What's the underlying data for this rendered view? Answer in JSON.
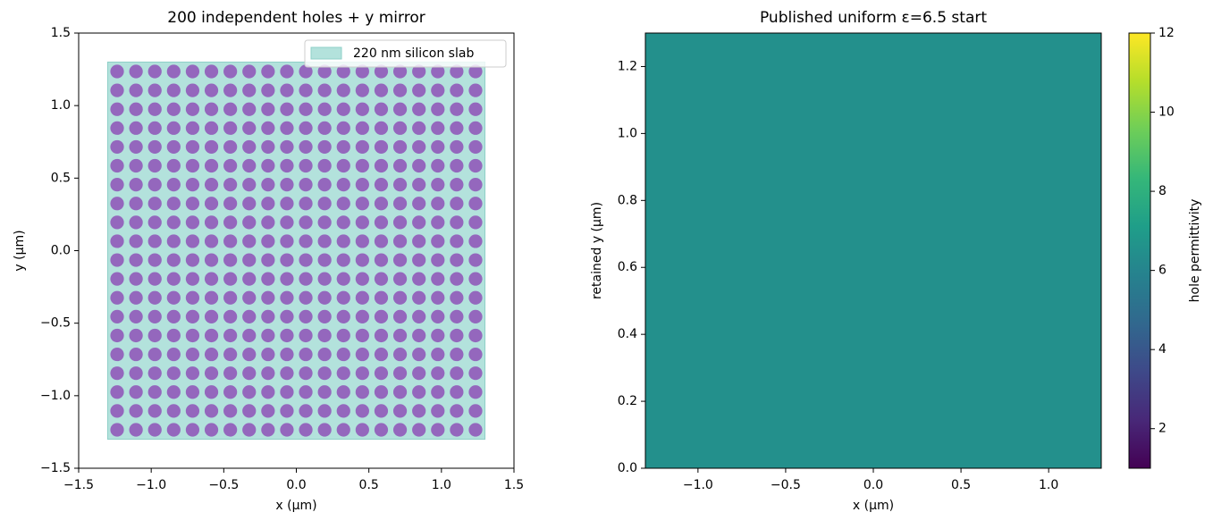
{
  "chart_data": [
    {
      "type": "scatter",
      "title": "200 independent holes + y mirror",
      "x_label": "x (µm)",
      "y_label": "y (µm)",
      "x": [
        -1.235,
        -1.105,
        -0.975,
        -0.845,
        -0.715,
        -0.585,
        -0.455,
        -0.325,
        -0.195,
        -0.065,
        0.065,
        0.195,
        0.325,
        0.455,
        0.585,
        0.715,
        0.845,
        0.975,
        1.105,
        1.235
      ],
      "y": [
        -1.235,
        -1.105,
        -0.975,
        -0.845,
        -0.715,
        -0.585,
        -0.455,
        -0.325,
        -0.195,
        -0.065,
        0.065,
        0.195,
        0.325,
        0.455,
        0.585,
        0.715,
        0.845,
        0.975,
        1.105,
        1.235
      ],
      "color": "#9467bd",
      "slab": {
        "name": "220 nm silicon slab",
        "color": "#b3e2dc",
        "edge_color": "#8fd0c8",
        "x": [
          -1.3,
          1.3
        ],
        "y": [
          -1.3,
          1.3
        ]
      },
      "legend": "upper right",
      "xlim": [
        -1.5,
        1.5
      ],
      "ylim": [
        -1.5,
        1.5
      ],
      "xticks": [
        {
          "value": -1.5,
          "label": "−1.5"
        },
        {
          "value": -1.0,
          "label": "−1.0"
        },
        {
          "value": -0.5,
          "label": "−0.5"
        },
        {
          "value": 0,
          "label": "0.0"
        },
        0.5,
        {
          "value": 1,
          "label": "1.0"
        },
        1.5
      ],
      "yticks": [
        {
          "value": -1.5,
          "label": "−1.5"
        },
        {
          "value": -1.0,
          "label": "−1.0"
        },
        {
          "value": -0.5,
          "label": "−0.5"
        },
        {
          "value": 0,
          "label": "0.0"
        },
        0.5,
        {
          "value": 1,
          "label": "1.0"
        },
        1.5
      ]
    },
    {
      "type": "heatmap",
      "title": "Published uniform ε=6.5 start",
      "x_label": "x (µm)",
      "y_label": "retained y (µm)",
      "values": [
        [
          6.5
        ]
      ],
      "xlim": [
        -1.3,
        1.3
      ],
      "ylim": [
        0,
        1.3
      ],
      "xticks": [
        {
          "value": -1.0,
          "label": "−1.0"
        },
        {
          "value": -0.5,
          "label": "−0.5"
        },
        {
          "value": 0,
          "label": "0.0"
        },
        0.5,
        {
          "value": 1,
          "label": "1.0"
        }
      ],
      "yticks": [
        {
          "value": 0,
          "label": "0.0"
        },
        0.2,
        0.4,
        0.6,
        0.8,
        {
          "value": 1,
          "label": "1.0"
        },
        1.2
      ],
      "colormap": "viridis",
      "clim": [
        1,
        12
      ],
      "cticks": [
        2,
        4,
        6,
        8,
        10,
        12
      ],
      "colorbar_label": "hole permittivity"
    }
  ]
}
